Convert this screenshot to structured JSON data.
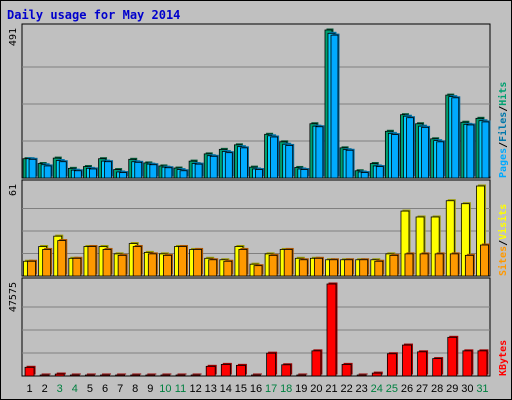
{
  "title": "Daily usage for May 2014",
  "colors": {
    "pages": "#00aaff",
    "pages_dark": "#006699",
    "files": "#00ccff",
    "files_dark": "#0077aa",
    "hits": "#00a070",
    "hits_dark": "#005533",
    "visits": "#ffff00",
    "visits_dark": "#999900",
    "sites": "#ff9900",
    "sites_dark": "#aa5500",
    "kbytes": "#ff0000",
    "kbytes_dark": "#990000",
    "label_weekday": "#000000",
    "label_weekend": "#008040",
    "plot_bg": "#c0c0c0",
    "grid": "#808080"
  },
  "chart_data": [
    {
      "type": "bar",
      "panel": "top",
      "ymax_label": "491",
      "ylim": [
        0,
        491
      ],
      "side_label": [
        "Pages",
        "/",
        "Files",
        "/",
        "Hits"
      ],
      "categories": [
        "1",
        "2",
        "3",
        "4",
        "5",
        "6",
        "7",
        "8",
        "9",
        "10",
        "11",
        "12",
        "13",
        "14",
        "15",
        "16",
        "17",
        "18",
        "19",
        "20",
        "21",
        "22",
        "23",
        "24",
        "25",
        "26",
        "27",
        "28",
        "29",
        "30",
        "31"
      ],
      "series": [
        {
          "name": "Hits",
          "values": [
            64,
            48,
            66,
            32,
            38,
            64,
            28,
            62,
            50,
            40,
            33,
            56,
            80,
            95,
            110,
            36,
            145,
            120,
            35,
            180,
            491,
            100,
            24,
            48,
            155,
            210,
            180,
            130,
            275,
            185,
            198
          ]
        },
        {
          "name": "Files",
          "values": [
            64,
            44,
            58,
            26,
            32,
            56,
            20,
            54,
            46,
            36,
            28,
            48,
            74,
            88,
            104,
            30,
            140,
            112,
            30,
            172,
            480,
            94,
            20,
            40,
            148,
            205,
            172,
            124,
            270,
            178,
            190
          ]
        },
        {
          "name": "Pages",
          "values": [
            62,
            40,
            54,
            24,
            30,
            54,
            18,
            52,
            44,
            34,
            24,
            46,
            72,
            84,
            100,
            28,
            136,
            108,
            28,
            170,
            474,
            92,
            18,
            38,
            144,
            200,
            168,
            120,
            266,
            176,
            186
          ]
        }
      ]
    },
    {
      "type": "bar",
      "panel": "middle",
      "ymax_label": "61",
      "ylim": [
        0,
        61
      ],
      "side_label": [
        "Sites",
        "/",
        "Visits"
      ],
      "categories": [
        "1",
        "2",
        "3",
        "4",
        "5",
        "6",
        "7",
        "8",
        "9",
        "10",
        "11",
        "12",
        "13",
        "14",
        "15",
        "16",
        "17",
        "18",
        "19",
        "20",
        "21",
        "22",
        "23",
        "24",
        "25",
        "26",
        "27",
        "28",
        "29",
        "30",
        "31"
      ],
      "series": [
        {
          "name": "Visits",
          "values": [
            10,
            20,
            27,
            12,
            20,
            20,
            15,
            22,
            16,
            15,
            20,
            18,
            12,
            11,
            20,
            8,
            15,
            18,
            12,
            12,
            11,
            11,
            11,
            11,
            15,
            44,
            40,
            40,
            51,
            49,
            61
          ]
        },
        {
          "name": "Sites",
          "values": [
            10,
            18,
            24,
            12,
            20,
            18,
            14,
            20,
            15,
            14,
            20,
            18,
            11,
            10,
            18,
            7,
            14,
            18,
            11,
            12,
            11,
            11,
            11,
            10,
            14,
            15,
            15,
            15,
            15,
            14,
            21
          ]
        }
      ]
    },
    {
      "type": "bar",
      "panel": "bottom",
      "ymax_label": "47575",
      "ylim": [
        0,
        47575
      ],
      "side_label": [
        "KBytes"
      ],
      "categories": [
        "1",
        "2",
        "3",
        "4",
        "5",
        "6",
        "7",
        "8",
        "9",
        "10",
        "11",
        "12",
        "13",
        "14",
        "15",
        "16",
        "17",
        "18",
        "19",
        "20",
        "21",
        "22",
        "23",
        "24",
        "25",
        "26",
        "27",
        "28",
        "29",
        "30",
        "31"
      ],
      "series": [
        {
          "name": "KBytes",
          "values": [
            4500,
            300,
            1000,
            300,
            300,
            300,
            300,
            300,
            300,
            300,
            300,
            300,
            5000,
            6000,
            5500,
            300,
            11800,
            5800,
            300,
            13000,
            47575,
            6000,
            300,
            1500,
            11500,
            16000,
            12500,
            9000,
            20000,
            13000,
            13000
          ]
        }
      ]
    }
  ],
  "x_labels": [
    {
      "text": "1",
      "weekend": false
    },
    {
      "text": "2",
      "weekend": false
    },
    {
      "text": "3",
      "weekend": true
    },
    {
      "text": "4",
      "weekend": true
    },
    {
      "text": "5",
      "weekend": false
    },
    {
      "text": "6",
      "weekend": false
    },
    {
      "text": "7",
      "weekend": false
    },
    {
      "text": "8",
      "weekend": false
    },
    {
      "text": "9",
      "weekend": false
    },
    {
      "text": "10",
      "weekend": true
    },
    {
      "text": "11",
      "weekend": true
    },
    {
      "text": "12",
      "weekend": false
    },
    {
      "text": "13",
      "weekend": false
    },
    {
      "text": "14",
      "weekend": false
    },
    {
      "text": "15",
      "weekend": false
    },
    {
      "text": "16",
      "weekend": false
    },
    {
      "text": "17",
      "weekend": true
    },
    {
      "text": "18",
      "weekend": true
    },
    {
      "text": "19",
      "weekend": false
    },
    {
      "text": "20",
      "weekend": false
    },
    {
      "text": "21",
      "weekend": false
    },
    {
      "text": "22",
      "weekend": false
    },
    {
      "text": "23",
      "weekend": false
    },
    {
      "text": "24",
      "weekend": true
    },
    {
      "text": "25",
      "weekend": true
    },
    {
      "text": "26",
      "weekend": false
    },
    {
      "text": "27",
      "weekend": false
    },
    {
      "text": "28",
      "weekend": false
    },
    {
      "text": "29",
      "weekend": false
    },
    {
      "text": "30",
      "weekend": false
    },
    {
      "text": "31",
      "weekend": true
    }
  ]
}
